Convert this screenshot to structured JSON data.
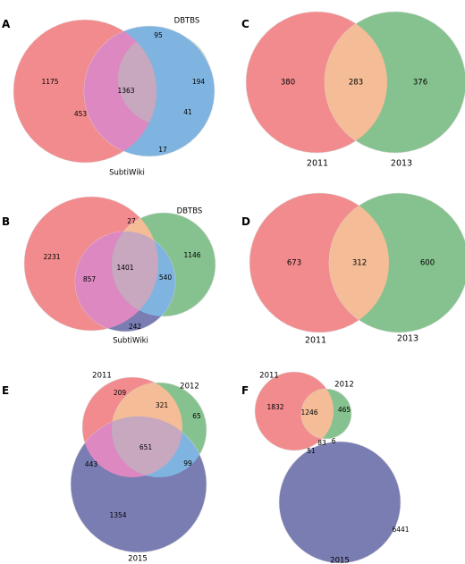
{
  "colors": {
    "red": "#f28b8e",
    "green": "#86c28f",
    "blue": "#7a7db2",
    "lightblue": "#7fb4e0",
    "orange": "#f4bc97",
    "pinkpurple": "#dd88c0",
    "mauve": "#c8a8bf",
    "tealgrey": "#9ab3bf",
    "outline": "#e0e0e0"
  },
  "panels": [
    {
      "letter": "A",
      "sets": [
        "",
        "DBTBS",
        "SubtiWiki"
      ],
      "regions": [
        "1175",
        "95",
        "194",
        "1363",
        "453",
        "41",
        "17"
      ]
    },
    {
      "letter": "B",
      "sets": [
        "",
        "DBTBS",
        "SubtiWiki"
      ],
      "regions": [
        "2231",
        "27",
        "1146",
        "1401",
        "857",
        "540",
        "242"
      ]
    },
    {
      "letter": "C",
      "sets": [
        "2011",
        "2013"
      ],
      "regions": [
        "380",
        "283",
        "376"
      ]
    },
    {
      "letter": "D",
      "sets": [
        "2011",
        "2013"
      ],
      "regions": [
        "673",
        "312",
        "600"
      ]
    },
    {
      "letter": "E",
      "sets": [
        "2011",
        "2012",
        "2015"
      ],
      "regions": [
        "209",
        "321",
        "65",
        "651",
        "443",
        "99",
        "1354"
      ]
    },
    {
      "letter": "F",
      "sets": [
        "2011",
        "2012",
        "2015"
      ],
      "regions": [
        "1832",
        "1246",
        "465",
        "83",
        "51",
        "6",
        "6441"
      ]
    }
  ]
}
